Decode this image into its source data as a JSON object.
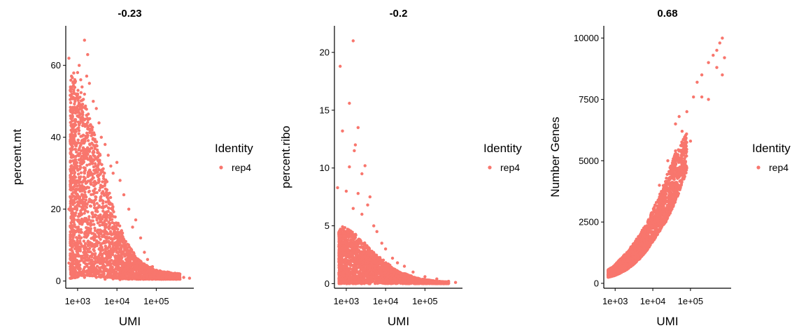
{
  "chart_data": [
    {
      "type": "scatter",
      "title": "-0.23",
      "xlabel": "UMI",
      "ylabel": "percent.mt",
      "x_scale": "log10",
      "x_ticks": [
        1000,
        10000,
        100000
      ],
      "x_tick_labels": [
        "1e+03",
        "1e+04",
        "1e+05"
      ],
      "y_ticks": [
        0,
        20,
        40,
        60
      ],
      "y_tick_labels": [
        "0",
        "20",
        "40",
        "60"
      ],
      "xlim": [
        500,
        900000
      ],
      "ylim": [
        -2,
        71
      ],
      "legend": {
        "title": "Identity",
        "entries": [
          "rep4"
        ],
        "placement": "right"
      },
      "series": [
        {
          "name": "rep4",
          "color": "#F8766D",
          "points": [
            [
              600,
              62
            ],
            [
              700,
              57
            ],
            [
              800,
              55
            ],
            [
              900,
              52
            ],
            [
              1000,
              58
            ],
            [
              1100,
              60
            ],
            [
              1200,
              56
            ],
            [
              1300,
              54
            ],
            [
              1500,
              67
            ],
            [
              1500,
              52
            ],
            [
              1700,
              57
            ],
            [
              1800,
              63
            ],
            [
              2000,
              55
            ],
            [
              2500,
              50
            ],
            [
              3000,
              48
            ],
            [
              3500,
              44
            ],
            [
              4000,
              40
            ],
            [
              5000,
              38
            ],
            [
              6000,
              35
            ],
            [
              7000,
              32
            ],
            [
              8000,
              30
            ],
            [
              10000,
              33
            ],
            [
              12000,
              28
            ],
            [
              15000,
              24
            ],
            [
              20000,
              20
            ],
            [
              25000,
              15
            ],
            [
              30000,
              17
            ],
            [
              40000,
              12
            ],
            [
              50000,
              8
            ],
            [
              60000,
              6
            ],
            [
              80000,
              4
            ],
            [
              100000,
              3
            ],
            [
              150000,
              2.5
            ],
            [
              200000,
              2
            ],
            [
              300000,
              1.5
            ],
            [
              500000,
              1
            ],
            [
              700000,
              0.8
            ],
            [
              600,
              5
            ],
            [
              700,
              2
            ],
            [
              800,
              3
            ],
            [
              900,
              1
            ],
            [
              1000,
              4
            ],
            [
              1200,
              2
            ],
            [
              1500,
              1
            ],
            [
              2000,
              1.5
            ],
            [
              3000,
              1
            ],
            [
              5000,
              0.5
            ],
            [
              8000,
              0.6
            ],
            [
              12000,
              0.4
            ],
            [
              20000,
              0.5
            ],
            [
              40000,
              0.6
            ],
            [
              600,
              20
            ],
            [
              700,
              30
            ],
            [
              800,
              40
            ],
            [
              900,
              25
            ],
            [
              1000,
              35
            ],
            [
              1200,
              45
            ],
            [
              1500,
              30
            ],
            [
              2000,
              25
            ],
            [
              3000,
              20
            ],
            [
              5000,
              15
            ],
            [
              8000,
              10
            ],
            [
              12000,
              6
            ],
            [
              20000,
              4
            ],
            [
              30000,
              3
            ]
          ]
        }
      ],
      "envelope": {
        "x": [
          650,
          800,
          1000,
          1300,
          1700,
          2200,
          3000,
          4000,
          5500,
          7500,
          10000,
          15000,
          20000,
          30000,
          45000,
          70000,
          100000,
          200000,
          400000
        ],
        "y_low": [
          0.5,
          0.5,
          1,
          1.5,
          1.5,
          1.5,
          1.2,
          1,
          1,
          0.8,
          0.8,
          0.6,
          0.6,
          0.5,
          0.5,
          0.5,
          0.5,
          0.5,
          0.5
        ],
        "y_high": [
          56,
          58,
          54,
          52,
          48,
          44,
          40,
          34,
          28,
          22,
          17,
          13,
          10,
          7,
          5,
          4,
          3,
          2.5,
          2
        ]
      }
    },
    {
      "type": "scatter",
      "title": "-0.2",
      "xlabel": "UMI",
      "ylabel": "percent.ribo",
      "x_scale": "log10",
      "x_ticks": [
        1000,
        10000,
        100000
      ],
      "x_tick_labels": [
        "1e+03",
        "1e+04",
        "1e+05"
      ],
      "y_ticks": [
        0,
        5,
        10,
        15,
        20
      ],
      "y_tick_labels": [
        "0",
        "5",
        "10",
        "15",
        "20"
      ],
      "xlim": [
        500,
        900000
      ],
      "ylim": [
        -0.4,
        22.3
      ],
      "legend": {
        "title": "Identity",
        "entries": [
          "rep4"
        ],
        "placement": "right"
      },
      "series": [
        {
          "name": "rep4",
          "color": "#F8766D",
          "points": [
            [
              1500,
              21
            ],
            [
              700,
              18.8
            ],
            [
              1200,
              15.6
            ],
            [
              800,
              13.2
            ],
            [
              2000,
              13.5
            ],
            [
              1700,
              12
            ],
            [
              1600,
              11.5
            ],
            [
              2500,
              9.5
            ],
            [
              3000,
              10.2
            ],
            [
              1200,
              10.1
            ],
            [
              600,
              8.3
            ],
            [
              1000,
              8
            ],
            [
              2000,
              7.8
            ],
            [
              4000,
              7.5
            ],
            [
              3500,
              6.8
            ],
            [
              1500,
              6.5
            ],
            [
              2500,
              6
            ],
            [
              5000,
              5
            ],
            [
              6000,
              4.5
            ],
            [
              8000,
              3.5
            ],
            [
              10000,
              3
            ],
            [
              15000,
              2.2
            ],
            [
              20000,
              1.8
            ],
            [
              30000,
              1.5
            ],
            [
              50000,
              1
            ],
            [
              100000,
              0.6
            ],
            [
              200000,
              0.4
            ],
            [
              400000,
              0.2
            ],
            [
              600000,
              0.1
            ]
          ]
        }
      ],
      "envelope": {
        "x": [
          650,
          800,
          1000,
          1500,
          2000,
          3000,
          4000,
          6000,
          9000,
          14000,
          20000,
          35000,
          60000,
          100000,
          200000,
          400000
        ],
        "y_low": [
          0,
          0,
          0,
          0,
          0,
          0,
          0,
          0,
          0,
          0,
          0,
          0,
          0,
          0,
          0,
          0
        ],
        "y_high": [
          4.5,
          5,
          4.8,
          4.5,
          4,
          3.5,
          3,
          2.5,
          2,
          1.5,
          1.1,
          0.8,
          0.5,
          0.35,
          0.2,
          0.15
        ]
      }
    },
    {
      "type": "scatter",
      "title": "0.68",
      "xlabel": "UMI",
      "ylabel": "Number Genes",
      "x_scale": "log10",
      "x_ticks": [
        1000,
        10000,
        100000
      ],
      "x_tick_labels": [
        "1e+03",
        "1e+04",
        "1e+05"
      ],
      "y_ticks": [
        0,
        2500,
        5000,
        7500,
        10000
      ],
      "y_tick_labels": [
        "0",
        "2500",
        "5000",
        "7500",
        "10000"
      ],
      "xlim": [
        500,
        1200000
      ],
      "ylim": [
        -200,
        10500
      ],
      "legend": {
        "title": "Identity",
        "entries": [
          "rep4"
        ],
        "placement": "right"
      },
      "series": [
        {
          "name": "rep4",
          "color": "#F8766D",
          "points": [
            [
              700,
              300
            ],
            [
              800,
              400
            ],
            [
              1000,
              500
            ],
            [
              1500,
              700
            ],
            [
              2000,
              900
            ],
            [
              3000,
              1200
            ],
            [
              5000,
              1600
            ],
            [
              8000,
              2200
            ],
            [
              12000,
              2800
            ],
            [
              20000,
              3800
            ],
            [
              30000,
              4600
            ],
            [
              40000,
              5400
            ],
            [
              60000,
              6200
            ],
            [
              80000,
              7000
            ],
            [
              120000,
              7600
            ],
            [
              150000,
              8200
            ],
            [
              200000,
              8500
            ],
            [
              300000,
              9000
            ],
            [
              400000,
              9300
            ],
            [
              500000,
              9500
            ],
            [
              600000,
              9800
            ],
            [
              700000,
              10000
            ],
            [
              800000,
              9200
            ],
            [
              700000,
              8500
            ],
            [
              500000,
              8800
            ],
            [
              300000,
              7500
            ],
            [
              100000,
              5800
            ],
            [
              60000,
              4800
            ],
            [
              30000,
              3000
            ],
            [
              15000,
              4000
            ],
            [
              25000,
              5000
            ],
            [
              40000,
              6500
            ],
            [
              20000,
              2500
            ],
            [
              50000,
              6800
            ],
            [
              200000,
              7600
            ]
          ]
        }
      ],
      "envelope": {
        "x": [
          650,
          900,
          1300,
          2000,
          3000,
          4500,
          7000,
          10000,
          15000,
          22000,
          32000,
          50000,
          80000
        ],
        "y_low": [
          250,
          300,
          400,
          550,
          750,
          1000,
          1350,
          1700,
          2100,
          2500,
          3000,
          3700,
          4600
        ],
        "y_high": [
          550,
          700,
          950,
          1250,
          1600,
          2000,
          2500,
          3000,
          3600,
          4300,
          5000,
          5600,
          6200
        ]
      }
    }
  ]
}
